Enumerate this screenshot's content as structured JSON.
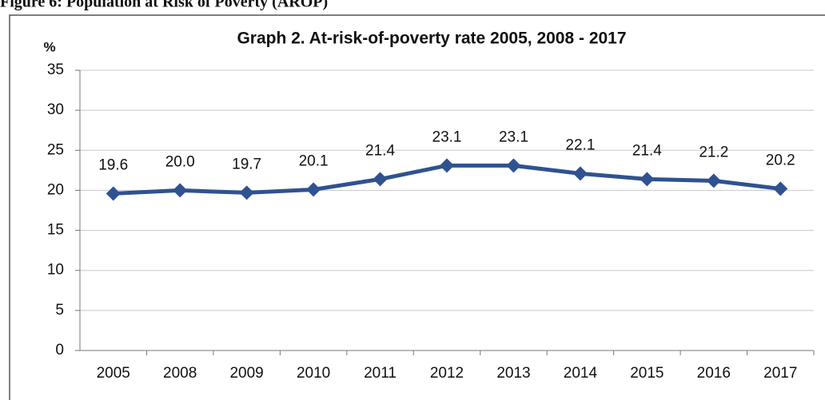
{
  "header": {
    "title": "Figure 6: Population at Risk of Poverty (AROP)"
  },
  "chart_data": {
    "type": "line",
    "title": "Graph 2. At-risk-of-poverty rate 2005, 2008 - 2017",
    "y_label": "%",
    "categories": [
      "2005",
      "2008",
      "2009",
      "2010",
      "2011",
      "2012",
      "2013",
      "2014",
      "2015",
      "2016",
      "2017"
    ],
    "series": [
      {
        "name": "At-risk-of-poverty rate",
        "color": "#2f5290",
        "values": [
          19.6,
          20.0,
          19.7,
          20.1,
          21.4,
          23.1,
          23.1,
          22.1,
          21.4,
          21.2,
          20.2
        ],
        "value_labels": [
          "19.6",
          "20.0",
          "19.7",
          "20.1",
          "21.4",
          "23.1",
          "23.1",
          "22.1",
          "21.4",
          "21.2",
          "20.2"
        ]
      }
    ],
    "ylim": [
      0,
      35
    ],
    "yticks": [
      0,
      5,
      10,
      15,
      20,
      25,
      30,
      35
    ],
    "grid": true,
    "legend": false
  }
}
